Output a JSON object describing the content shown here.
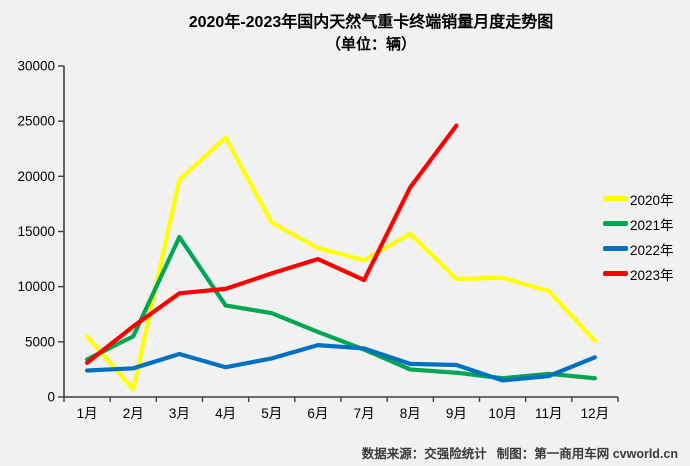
{
  "title": {
    "line1": "2020年-2023年国内天然气重卡终端销量月度走势图",
    "line2": "（单位：辆）"
  },
  "footer": {
    "source": "数据来源：交强险统计",
    "credit": "制图：第一商用车网 cvworld.cn"
  },
  "colors": {
    "axis": "#404040",
    "background": "#f1f1f1",
    "text": "#000000"
  },
  "chart_data": {
    "type": "line",
    "title": "2020年-2023年国内天然气重卡终端销量月度走势图",
    "subtitle": "（单位：辆）",
    "unit": "辆",
    "categories": [
      "1月",
      "2月",
      "3月",
      "4月",
      "5月",
      "6月",
      "7月",
      "8月",
      "9月",
      "10月",
      "11月",
      "12月"
    ],
    "series": [
      {
        "name": "2020年",
        "color": "#FFFF00",
        "values": [
          5500,
          700,
          19700,
          23500,
          15800,
          13500,
          12400,
          14800,
          10700,
          10800,
          9600,
          5100
        ]
      },
      {
        "name": "2021年",
        "color": "#00A651",
        "values": [
          3400,
          5500,
          14500,
          8300,
          7600,
          5900,
          4300,
          2500,
          2200,
          1700,
          2100,
          1700
        ]
      },
      {
        "name": "2022年",
        "color": "#0070C0",
        "values": [
          2400,
          2600,
          3900,
          2700,
          3500,
          4700,
          4400,
          3000,
          2900,
          1500,
          1900,
          3600
        ]
      },
      {
        "name": "2023年",
        "color": "#FF0000",
        "values": [
          3100,
          6400,
          9400,
          9800,
          11200,
          12500,
          10600,
          19000,
          24600,
          null,
          null,
          null
        ]
      }
    ],
    "ylim": [
      0,
      30000
    ],
    "yticks": [
      0,
      5000,
      10000,
      15000,
      20000,
      25000,
      30000
    ],
    "grid": false,
    "legend_position": "right"
  }
}
